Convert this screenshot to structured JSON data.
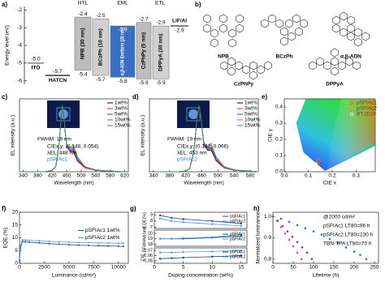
{
  "molecules": {
    "panel": "b)",
    "names": [
      "NPB",
      "BCzPh",
      "α,β-ADN",
      "CzPhPy",
      "DPPyA"
    ]
  },
  "chart_data": [
    {
      "type": "energy-level",
      "panel": "a)",
      "ylabel": "Energy level (eV)",
      "ylim": [
        -6.2,
        -1.8
      ],
      "yticks": [
        -2,
        -3,
        -4,
        -5,
        -6
      ],
      "groups": [
        "HTL",
        "EML",
        "ETL"
      ],
      "layers": [
        {
          "name": "ITO",
          "homo": -5.0,
          "homo_label": "-5.0",
          "color": "#888888"
        },
        {
          "name": "HATCN",
          "homo": -5.7,
          "color": "#333333"
        },
        {
          "name": "NPB (30 nm)",
          "lumo": -2.4,
          "homo": -5.4,
          "color": "#bdbdbd"
        },
        {
          "name": "BCzPh (10 nm)",
          "lumo": -2.5,
          "homo": -5.7,
          "color": "#d0d0d0"
        },
        {
          "name": "α,β-ADN Emitters (20 nm)",
          "lumo": -2.9,
          "homo": -5.8,
          "color": "#3a6fc4"
        },
        {
          "name": "CzPhPy (5 nm)",
          "lumo": -2.7,
          "homo": -5.9,
          "color": "#bdbdbd"
        },
        {
          "name": "DPPyA (30 nm)",
          "lumo": -2.9,
          "homo": -5.9,
          "color": "#d0d0d0"
        },
        {
          "name": "LiF/Al",
          "lumo": -2.9,
          "color": "#555555"
        }
      ]
    },
    {
      "type": "line",
      "panel": "c)",
      "xlabel": "Wavelength (nm)",
      "ylabel": "EL intensity (a.u.)",
      "xlim": [
        330,
        630
      ],
      "ylim": [
        0,
        1.1
      ],
      "xticks": [
        340,
        380,
        420,
        460,
        500,
        540,
        580,
        620
      ],
      "legend": "upper right",
      "annotations": [
        "FWHM: 19 nm",
        "CIEx,y: (0.148, 0.054)",
        "λEL: 448 nm",
        "pSFIAc1"
      ],
      "x": [
        340,
        400,
        420,
        430,
        440,
        445,
        448,
        452,
        460,
        470,
        478,
        490,
        510,
        540,
        580,
        620
      ],
      "series": [
        {
          "name": "1wt%",
          "color": "#000000",
          "values": [
            0,
            0,
            0.02,
            0.08,
            0.45,
            0.85,
            1.0,
            0.82,
            0.38,
            0.3,
            0.31,
            0.16,
            0.06,
            0.02,
            0.01,
            0
          ]
        },
        {
          "name": "3wt%",
          "color": "#e02020",
          "values": [
            0,
            0,
            0.02,
            0.08,
            0.45,
            0.85,
            1.0,
            0.82,
            0.38,
            0.31,
            0.33,
            0.17,
            0.06,
            0.02,
            0.01,
            0
          ]
        },
        {
          "name": "5wt%",
          "color": "#2040e0",
          "values": [
            0,
            0,
            0.02,
            0.08,
            0.45,
            0.85,
            1.0,
            0.82,
            0.39,
            0.32,
            0.35,
            0.18,
            0.07,
            0.02,
            0.01,
            0
          ]
        },
        {
          "name": "10wt%",
          "color": "#c040c0",
          "values": [
            0,
            0,
            0.02,
            0.08,
            0.45,
            0.85,
            1.0,
            0.83,
            0.4,
            0.34,
            0.38,
            0.2,
            0.07,
            0.02,
            0.01,
            0
          ]
        },
        {
          "name": "15wt%",
          "color": "#20a040",
          "values": [
            0,
            0,
            0.02,
            0.08,
            0.45,
            0.85,
            1.0,
            0.84,
            0.41,
            0.36,
            0.41,
            0.22,
            0.08,
            0.03,
            0.01,
            0
          ]
        }
      ]
    },
    {
      "type": "line",
      "panel": "d)",
      "xlabel": "Wavelength (nm)",
      "ylabel": "EL intensity (a.u.)",
      "xlim": [
        330,
        600
      ],
      "ylim": [
        0,
        1.1
      ],
      "xticks": [
        340,
        380,
        420,
        460,
        500,
        540,
        580
      ],
      "legend": "upper right",
      "annotations": [
        "FWHM: 19 nm",
        "CIEx,y: (0.142, 0.066)",
        "λEL: 453 nm",
        "pSFIAc2"
      ],
      "x": [
        340,
        400,
        420,
        430,
        440,
        448,
        453,
        457,
        465,
        475,
        483,
        495,
        515,
        540,
        580,
        600
      ],
      "series": [
        {
          "name": "1wt%",
          "color": "#000000",
          "values": [
            0,
            0,
            0.01,
            0.05,
            0.3,
            0.8,
            1.0,
            0.85,
            0.4,
            0.32,
            0.33,
            0.17,
            0.06,
            0.02,
            0.01,
            0
          ]
        },
        {
          "name": "3wt%",
          "color": "#e02020",
          "values": [
            0,
            0,
            0.01,
            0.05,
            0.3,
            0.8,
            1.0,
            0.85,
            0.41,
            0.33,
            0.35,
            0.18,
            0.06,
            0.02,
            0.01,
            0
          ]
        },
        {
          "name": "5wt%",
          "color": "#2040e0",
          "values": [
            0,
            0,
            0.01,
            0.05,
            0.3,
            0.8,
            1.0,
            0.86,
            0.42,
            0.34,
            0.37,
            0.19,
            0.07,
            0.02,
            0.01,
            0
          ]
        },
        {
          "name": "10wt%",
          "color": "#c040c0",
          "values": [
            0,
            0,
            0.01,
            0.05,
            0.3,
            0.8,
            1.0,
            0.86,
            0.43,
            0.36,
            0.4,
            0.21,
            0.07,
            0.02,
            0.01,
            0
          ]
        },
        {
          "name": "15wt%",
          "color": "#20a040",
          "values": [
            0,
            0,
            0.01,
            0.05,
            0.3,
            0.8,
            1.0,
            0.87,
            0.44,
            0.38,
            0.43,
            0.23,
            0.08,
            0.03,
            0.01,
            0
          ]
        }
      ]
    },
    {
      "type": "scatter",
      "panel": "e)",
      "xlabel": "CIE x",
      "ylabel": "CIE y",
      "xlim": [
        0,
        0.38
      ],
      "ylim": [
        0,
        0.45
      ],
      "xticks": [
        {
          "value": 0,
          "label": "0.0"
        },
        0.1,
        0.2,
        0.3
      ],
      "yticks": [
        {
          "value": 0,
          "label": "0.0"
        },
        0.1,
        0.2,
        0.3,
        0.4
      ],
      "legend": "upper right",
      "series": [
        {
          "name": "pSFIAc1",
          "color": "#e03030",
          "x": [
            0.148
          ],
          "values": [
            0.054
          ]
        },
        {
          "name": "pSFIAc2",
          "color": "#e08020",
          "x": [
            0.142
          ],
          "values": [
            0.066
          ]
        },
        {
          "name": "BT.2020",
          "color": "#ffffff",
          "x": [
            0.131
          ],
          "values": [
            0.046
          ]
        }
      ]
    },
    {
      "type": "line",
      "markers": true,
      "panel": "f)",
      "xlabel": "Luminance (cd/m²)",
      "ylabel": "EQE (%)",
      "xlim": [
        0,
        11000
      ],
      "ylim": [
        0,
        20
      ],
      "xticks": [
        0,
        2500,
        5000,
        7500,
        10000
      ],
      "yticks": [
        0,
        5,
        10,
        15,
        20
      ],
      "legend": "center right",
      "x": [
        20,
        100,
        300,
        600,
        1000,
        2000,
        3000,
        4000,
        5000,
        6000,
        7000,
        8000,
        9000,
        10000,
        10500
      ],
      "series": [
        {
          "name": "pSFIAc1 1wt%",
          "color": "#1f3f8f",
          "values": [
            1,
            6,
            8.6,
            8.4,
            8.3,
            8.0,
            7.7,
            7.5,
            7.3,
            7.1,
            7.0,
            6.9,
            6.8,
            6.7,
            6.65
          ]
        },
        {
          "name": "pSFIAc2 1wt%",
          "color": "#40a0e0",
          "values": [
            2,
            7,
            9.2,
            9.1,
            9.0,
            8.8,
            8.6,
            8.4,
            8.3,
            8.2,
            8.1,
            8.0,
            7.95,
            7.9,
            7.85
          ]
        }
      ]
    },
    {
      "type": "line",
      "markers": true,
      "panel": "g)",
      "ylabel": "EQE(%)",
      "xlim": [
        0,
        16
      ],
      "ylim": [
        6.8,
        9.4
      ],
      "yticks": [
        7,
        8,
        9
      ],
      "legend": "upper right",
      "x": [
        1,
        3,
        5,
        10,
        15
      ],
      "series": [
        {
          "name": "pSFIAc1",
          "color": "#1f3f8f",
          "values": [
            8.9,
            8.5,
            8.3,
            8.0,
            7.6
          ]
        },
        {
          "name": "pSFIAc2",
          "color": "#40a0e0",
          "values": [
            8.4,
            8.0,
            7.8,
            7.5,
            7.2
          ]
        }
      ]
    },
    {
      "type": "line",
      "markers": true,
      "ylabel": "FWHM(nm)",
      "xlim": [
        0,
        16
      ],
      "ylim": [
        17.6,
        20.6
      ],
      "yticks": [
        18,
        19,
        20
      ],
      "legend": "upper right",
      "x": [
        1,
        3,
        5,
        10,
        15
      ],
      "series": [
        {
          "name": "pSFIAc1",
          "color": "#1f3f8f",
          "values": [
            19,
            19,
            19,
            19.2,
            19.5
          ]
        },
        {
          "name": "pSFIAc2",
          "color": "#40a0e0",
          "values": [
            19,
            19,
            19.1,
            19.3,
            19.8
          ]
        }
      ]
    },
    {
      "type": "line",
      "markers": true,
      "ylabel": "CIE y",
      "xlabel": "Doping concentration (wt%)",
      "xlim": [
        0,
        16
      ],
      "ylim": [
        0.045,
        0.075
      ],
      "xticks": [
        0,
        5,
        10,
        15
      ],
      "yticks": [
        0.05,
        0.06,
        0.07
      ],
      "legend": "upper right",
      "x": [
        1,
        3,
        5,
        10,
        15
      ],
      "series": [
        {
          "name": "pSFIAc1",
          "color": "#1f3f8f",
          "values": [
            0.054,
            0.055,
            0.056,
            0.058,
            0.06
          ]
        },
        {
          "name": "pSFIAc2",
          "color": "#40a0e0",
          "values": [
            0.066,
            0.066,
            0.067,
            0.068,
            0.07
          ]
        }
      ]
    },
    {
      "type": "scatter",
      "panel": "h)",
      "xlabel": "Lifetime (h)",
      "ylabel": "Normalized luminance",
      "xlim": [
        0,
        260
      ],
      "ylim": [
        0.78,
        1.02
      ],
      "xticks": [
        0,
        50,
        100,
        150,
        200,
        250
      ],
      "yticks": [
        0.8,
        0.9,
        {
          "value": 1,
          "label": "1.0"
        }
      ],
      "annotations": [
        "@2000 cd/m²",
        "pSFIAc1 LT80=96 h",
        "pSFIAc2 LT80=230 h",
        "TBN-TPA LT80=70 h"
      ],
      "series": [
        {
          "color": "#e05080",
          "x": [
            0,
            10,
            20,
            30,
            40,
            50,
            60,
            70
          ],
          "values": [
            1,
            0.98,
            0.95,
            0.92,
            0.89,
            0.86,
            0.83,
            0.8
          ]
        },
        {
          "color": "#7040a0",
          "x": [
            0,
            12,
            24,
            36,
            48,
            60,
            72,
            84,
            96
          ],
          "values": [
            1,
            0.98,
            0.955,
            0.93,
            0.905,
            0.88,
            0.855,
            0.83,
            0.8
          ]
        },
        {
          "color": "#3070d0",
          "x": [
            0,
            20,
            40,
            60,
            80,
            100,
            120,
            140,
            160,
            180,
            200,
            215,
            230
          ],
          "values": [
            1,
            0.99,
            0.975,
            0.96,
            0.945,
            0.93,
            0.915,
            0.895,
            0.875,
            0.855,
            0.835,
            0.82,
            0.8
          ]
        }
      ]
    }
  ]
}
